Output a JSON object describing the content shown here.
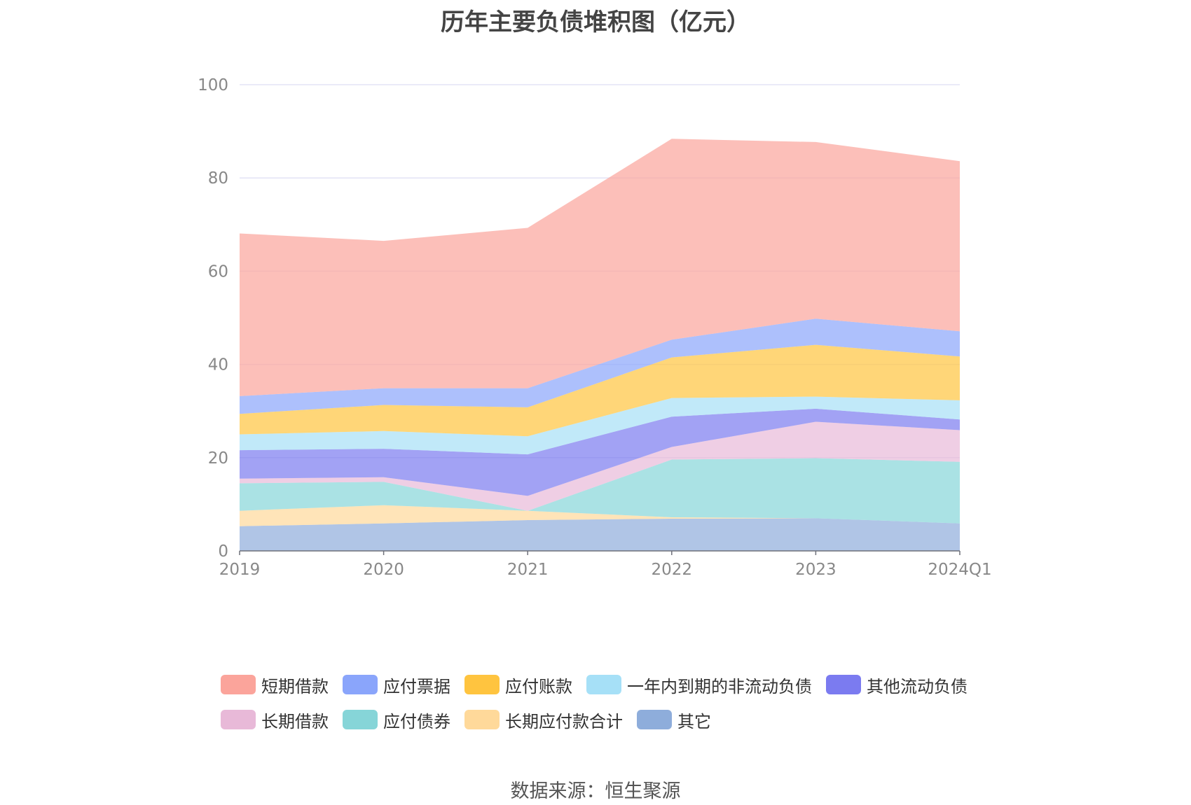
{
  "chart_data": {
    "type": "area",
    "title": "历年主要负债堆积图（亿元）",
    "x": [
      "2019",
      "2020",
      "2021",
      "2022",
      "2023",
      "2024Q1"
    ],
    "ylim": [
      0,
      100
    ],
    "yticks": [
      "0",
      "20",
      "40",
      "60",
      "80",
      "100"
    ],
    "grid": true,
    "legend_position": "bottom",
    "stacked": true,
    "series": [
      {
        "name": "其它",
        "color": "#8eaddb",
        "values": [
          5.3,
          5.9,
          6.6,
          6.9,
          7.0,
          5.9
        ]
      },
      {
        "name": "长期应付款合计",
        "color": "#ffd99a",
        "values": [
          3.3,
          3.9,
          2.0,
          0.3,
          0,
          0
        ]
      },
      {
        "name": "应付债券",
        "color": "#86d5d8",
        "values": [
          5.9,
          5.0,
          0,
          12.4,
          12.9,
          13.2
        ]
      },
      {
        "name": "长期借款",
        "color": "#e8b9d8",
        "values": [
          1.0,
          1.0,
          3.2,
          2.7,
          7.8,
          6.8
        ]
      },
      {
        "name": "其他流动负债",
        "color": "#7b7bf0",
        "values": [
          6.1,
          6.1,
          8.9,
          6.5,
          2.8,
          2.3
        ]
      },
      {
        "name": "一年内到期的非流动负债",
        "color": "#a6e0f7",
        "values": [
          3.4,
          3.8,
          3.9,
          4.0,
          2.6,
          4.1
        ]
      },
      {
        "name": "应付账款",
        "color": "#ffc43f",
        "values": [
          4.4,
          5.6,
          6.2,
          8.7,
          11.1,
          9.4
        ]
      },
      {
        "name": "应付票据",
        "color": "#8aa5fb",
        "values": [
          3.8,
          3.6,
          4.1,
          3.8,
          5.6,
          5.4
        ]
      },
      {
        "name": "短期借款",
        "color": "#fba49b",
        "values": [
          34.9,
          31.6,
          34.4,
          43.1,
          37.9,
          36.5
        ]
      }
    ],
    "legend_order": [
      "短期借款",
      "应付票据",
      "应付账款",
      "一年内到期的非流动负债",
      "其他流动负债",
      "长期借款",
      "应付债券",
      "长期应付款合计",
      "其它"
    ]
  },
  "source": "数据来源：恒生聚源"
}
